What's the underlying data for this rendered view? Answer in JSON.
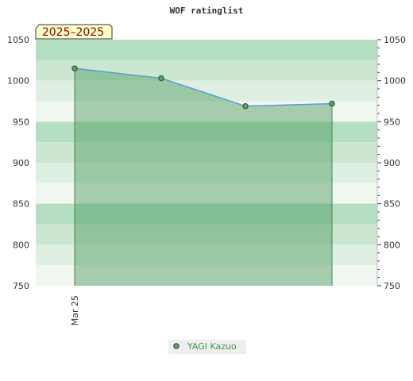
{
  "chart_data": {
    "type": "area",
    "title": "WOF ratinglist",
    "period_label": "2025–2025",
    "xlabel": "",
    "ylabel": "",
    "x_tick_labels": [
      "Mar 25"
    ],
    "ylim": [
      750,
      1050
    ],
    "y_ticks": [
      750,
      800,
      850,
      900,
      950,
      1000,
      1050
    ],
    "grid": true,
    "legend_position": "bottom",
    "series": [
      {
        "name": "YAGI Kazuo",
        "color": "#4a9a5a",
        "line_color": "#5b9bd5",
        "values": [
          1015,
          1003,
          969,
          972
        ]
      }
    ],
    "band_colors": [
      "#f0f7f1",
      "#dff0e2",
      "#cbe7d1",
      "#b4dec1"
    ]
  }
}
